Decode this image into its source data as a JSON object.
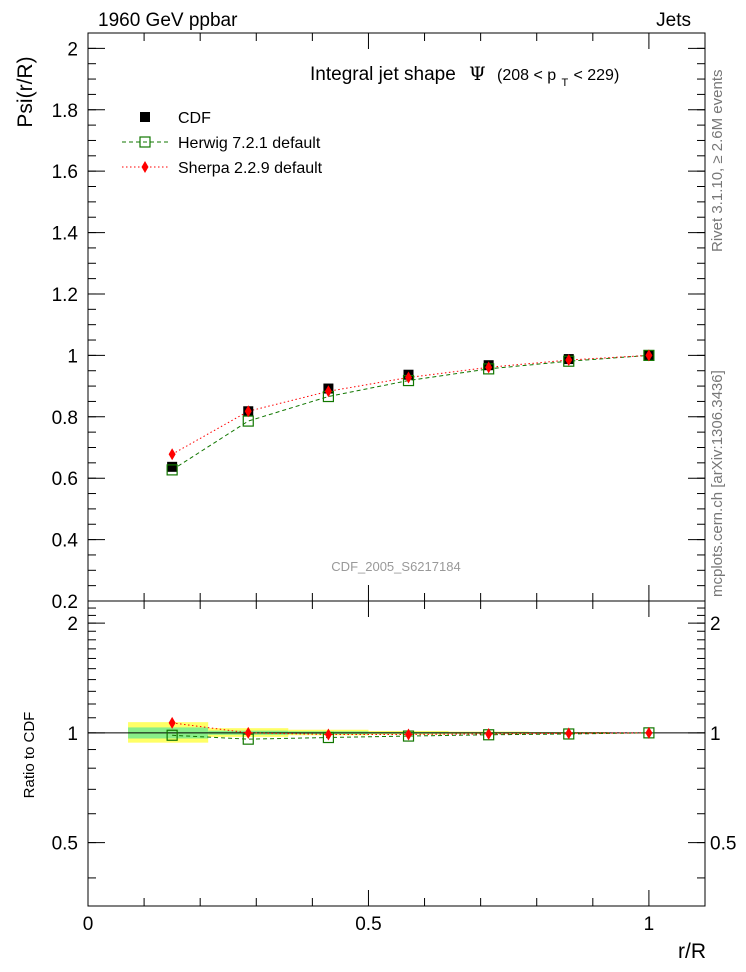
{
  "header": {
    "left": "1960 GeV ppbar",
    "right": "Jets"
  },
  "side_labels": {
    "top": "Rivet 3.1.10, ≥ 2.6M events",
    "bottom": "mcplots.cern.ch [arXiv:1306.3436]"
  },
  "chart_data": [
    {
      "type": "scatter",
      "title": {
        "text": "Integral jet shape",
        "symbol": "Ψ",
        "range_pre": "(208 < p",
        "range_sub": "T",
        "range_post": " < 229)"
      },
      "ylabel": "Psi(r/R)",
      "watermark": "CDF_2005_S6217184",
      "xlim": [
        0,
        1.1
      ],
      "ylim": [
        0.2,
        2.05
      ],
      "yticks": [
        "0.2",
        "0.4",
        "0.6",
        "0.8",
        "1",
        "1.2",
        "1.4",
        "1.6",
        "1.8",
        "2"
      ],
      "ytick_values": [
        0.2,
        0.4,
        0.6,
        0.8,
        1.0,
        1.2,
        1.4,
        1.6,
        1.8,
        2.0
      ],
      "legend_position": "top-left",
      "x": [
        0.15,
        0.2857,
        0.4286,
        0.5714,
        0.7143,
        0.8571,
        1.0
      ],
      "series": [
        {
          "name": "CDF",
          "color": "#000000",
          "marker": "filled-square",
          "values": [
            0.637,
            0.818,
            0.892,
            0.937,
            0.968,
            0.988,
            1.0
          ]
        },
        {
          "name": "Herwig 7.2.1 default",
          "color": "#117700",
          "marker": "open-square",
          "line": "dashed",
          "values": [
            0.627,
            0.786,
            0.866,
            0.918,
            0.956,
            0.981,
            1.0
          ]
        },
        {
          "name": "Sherpa 2.2.9 default",
          "color": "#ff0000",
          "marker": "diamond",
          "line": "dotted",
          "values": [
            0.678,
            0.818,
            0.883,
            0.928,
            0.961,
            0.985,
            1.0
          ]
        }
      ]
    },
    {
      "type": "scatter",
      "ylabel": "Ratio to CDF",
      "xlabel": "r/R",
      "xlim": [
        0,
        1.1
      ],
      "ylim": [
        0.335,
        2.3
      ],
      "yticks": [
        "0.5",
        "1",
        "2"
      ],
      "ytick_values": [
        0.5,
        1.0,
        2.0
      ],
      "xticks": [
        "0",
        "0.5",
        "1"
      ],
      "xtick_values": [
        0,
        0.5,
        1.0
      ],
      "yscale": "log",
      "bands": {
        "bin_edges": [
          0.0714,
          0.2143,
          0.3571,
          0.5,
          0.6429,
          0.7857,
          0.9286,
          1.0
        ],
        "yellow": [
          [
            0.94,
            1.07
          ],
          [
            0.975,
            1.03
          ],
          [
            0.985,
            1.02
          ],
          [
            0.99,
            1.012
          ],
          [
            0.993,
            1.008
          ],
          [
            0.995,
            1.005
          ],
          [
            0.998,
            1.002
          ]
        ],
        "green": [
          [
            0.965,
            1.035
          ],
          [
            0.988,
            1.014
          ],
          [
            0.992,
            1.01
          ],
          [
            0.995,
            1.006
          ],
          [
            0.996,
            1.004
          ],
          [
            0.997,
            1.003
          ],
          [
            0.999,
            1.001
          ]
        ]
      },
      "series": [
        {
          "name": "Herwig 7.2.1 default",
          "color": "#117700",
          "marker": "open-square",
          "line": "dashed",
          "values": [
            0.985,
            0.961,
            0.971,
            0.98,
            0.988,
            0.993,
            1.0
          ]
        },
        {
          "name": "Sherpa 2.2.9 default",
          "color": "#ff0000",
          "marker": "diamond",
          "line": "dotted",
          "values": [
            1.065,
            1.0,
            0.99,
            0.99,
            0.993,
            0.997,
            1.0
          ]
        }
      ]
    }
  ]
}
